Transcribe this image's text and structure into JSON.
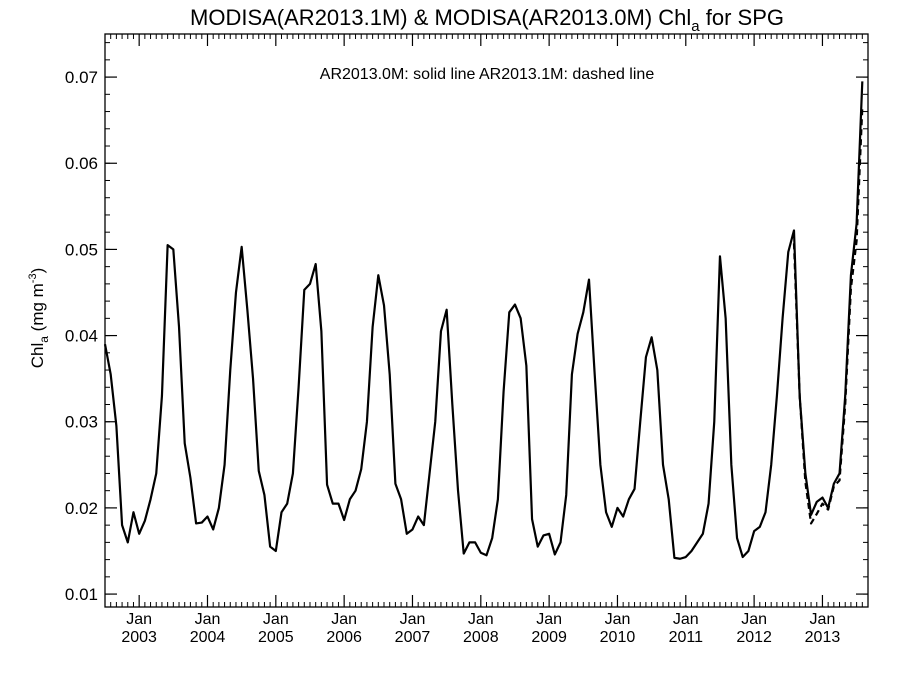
{
  "chart_data": {
    "type": "line",
    "title": {
      "main": "MODISA(AR2013.1M) & MODISA(AR2013.0M)  Chl",
      "sub": "a",
      "tail": " for SPG"
    },
    "annotation": "AR2013.0M: solid line   AR2013.1M: dashed line",
    "ylabel": {
      "main": "Chl",
      "sub": "a",
      "unit_prefix": " (mg m",
      "unit_sup": "-3",
      "unit_suffix": ")"
    },
    "xlabel": "",
    "ylim": [
      0.0085,
      0.075
    ],
    "yticks": [
      {
        "value": 0.01,
        "label": "0.01"
      },
      {
        "value": 0.02,
        "label": "0.02"
      },
      {
        "value": 0.03,
        "label": "0.03"
      },
      {
        "value": 0.04,
        "label": "0.04"
      },
      {
        "value": 0.05,
        "label": "0.05"
      },
      {
        "value": 0.06,
        "label": "0.06"
      },
      {
        "value": 0.07,
        "label": "0.07"
      }
    ],
    "xlim": [
      "2002-07",
      "2013-09"
    ],
    "xticks": [
      {
        "month": "Jan",
        "year": "2003",
        "value": "2003-01"
      },
      {
        "month": "Jan",
        "year": "2004",
        "value": "2004-01"
      },
      {
        "month": "Jan",
        "year": "2005",
        "value": "2005-01"
      },
      {
        "month": "Jan",
        "year": "2006",
        "value": "2006-01"
      },
      {
        "month": "Jan",
        "year": "2007",
        "value": "2007-01"
      },
      {
        "month": "Jan",
        "year": "2008",
        "value": "2008-01"
      },
      {
        "month": "Jan",
        "year": "2009",
        "value": "2009-01"
      },
      {
        "month": "Jan",
        "year": "2010",
        "value": "2010-01"
      },
      {
        "month": "Jan",
        "year": "2011",
        "value": "2011-01"
      },
      {
        "month": "Jan",
        "year": "2012",
        "value": "2012-01"
      },
      {
        "month": "Jan",
        "year": "2013",
        "value": "2013-01"
      }
    ],
    "series": [
      {
        "name": "AR2013.0M",
        "style": "solid",
        "color": "#000000",
        "start": "2002-07",
        "values": [
          0.039,
          0.0355,
          0.0295,
          0.018,
          0.016,
          0.0195,
          0.017,
          0.0185,
          0.021,
          0.024,
          0.033,
          0.0505,
          0.05,
          0.041,
          0.0275,
          0.0235,
          0.0182,
          0.0183,
          0.019,
          0.0175,
          0.02,
          0.025,
          0.036,
          0.045,
          0.0503,
          0.043,
          0.035,
          0.0243,
          0.0215,
          0.0155,
          0.015,
          0.0195,
          0.0205,
          0.024,
          0.034,
          0.0453,
          0.046,
          0.0483,
          0.0405,
          0.0227,
          0.0205,
          0.0205,
          0.0186,
          0.021,
          0.022,
          0.0245,
          0.03,
          0.041,
          0.047,
          0.0435,
          0.0355,
          0.0228,
          0.021,
          0.017,
          0.0175,
          0.019,
          0.018,
          0.024,
          0.03,
          0.0405,
          0.043,
          0.032,
          0.022,
          0.0147,
          0.016,
          0.016,
          0.0148,
          0.0145,
          0.0165,
          0.021,
          0.0335,
          0.0427,
          0.0436,
          0.042,
          0.0365,
          0.0187,
          0.0155,
          0.0168,
          0.017,
          0.0146,
          0.016,
          0.0215,
          0.0355,
          0.0402,
          0.0427,
          0.0465,
          0.0355,
          0.025,
          0.0195,
          0.0178,
          0.02,
          0.019,
          0.021,
          0.0222,
          0.03,
          0.0375,
          0.0398,
          0.036,
          0.025,
          0.021,
          0.0142,
          0.0141,
          0.0143,
          0.015,
          0.016,
          0.017,
          0.0205,
          0.03,
          0.0492,
          0.042,
          0.025,
          0.0165,
          0.0143,
          0.015,
          0.0173,
          0.0178,
          0.0195,
          0.025,
          0.033,
          0.042,
          0.0497,
          0.0522,
          0.033,
          0.024,
          0.0192,
          0.0207,
          0.0212,
          0.02,
          0.0228,
          0.024,
          0.033,
          0.047,
          0.053,
          0.0695
        ]
      },
      {
        "name": "AR2013.1M",
        "style": "dashed",
        "color": "#000000",
        "start": "2012-08",
        "values": [
          0.0507,
          0.033,
          0.023,
          0.0182,
          0.0193,
          0.0205,
          0.0198,
          0.0225,
          0.0232,
          0.032,
          0.0455,
          0.051,
          0.0665
        ]
      }
    ],
    "grid": false,
    "legend": "none"
  }
}
